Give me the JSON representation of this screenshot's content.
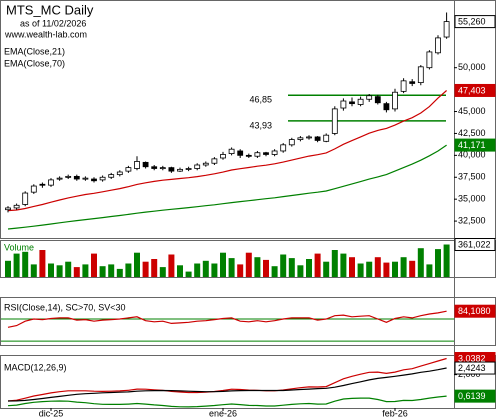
{
  "chart_data": [
    {
      "type": "candlestick",
      "title": "MTS_MC Daily",
      "subtitle": "as of 11/02/2026",
      "source": "www.wealth-lab.com",
      "categories": [
        null,
        null,
        null,
        null,
        null,
        "dic-25",
        null,
        null,
        null,
        null,
        null,
        null,
        null,
        null,
        null,
        null,
        null,
        null,
        null,
        null,
        null,
        null,
        null,
        null,
        null,
        "ene-26",
        null,
        null,
        null,
        null,
        null,
        null,
        null,
        null,
        null,
        null,
        null,
        null,
        null,
        null,
        null,
        null,
        null,
        null,
        null,
        "feb-26",
        null,
        null,
        null,
        null,
        null,
        null
      ],
      "open": [
        33800,
        34000,
        34400,
        35800,
        36700,
        36600,
        37300,
        37500,
        37600,
        37300,
        37300,
        37200,
        37500,
        37800,
        38200,
        38500,
        39200,
        38700,
        38500,
        38600,
        38200,
        38400,
        38500,
        38900,
        39100,
        39700,
        40200,
        40500,
        40000,
        39900,
        40300,
        40100,
        40500,
        41200,
        41800,
        42000,
        42100,
        41600,
        42500,
        45400,
        46100,
        45800,
        46400,
        46700,
        45900,
        45300,
        47300,
        48400,
        48300,
        50000,
        51700,
        53500
      ],
      "high": [
        34200,
        34500,
        35900,
        36700,
        36900,
        37400,
        37600,
        37800,
        37800,
        37600,
        37500,
        37700,
        38000,
        38300,
        38800,
        39900,
        39300,
        38900,
        38800,
        38700,
        38600,
        38700,
        39100,
        39300,
        39800,
        40400,
        40900,
        40700,
        40200,
        40500,
        40400,
        40700,
        41400,
        42000,
        42200,
        42300,
        42200,
        42500,
        45600,
        46500,
        46600,
        46700,
        47000,
        46900,
        46100,
        47600,
        48800,
        48700,
        50300,
        52000,
        53700,
        56300
      ],
      "low": [
        33500,
        33800,
        34200,
        35600,
        36300,
        36400,
        37100,
        37300,
        37100,
        37100,
        36900,
        37000,
        37300,
        37600,
        38000,
        38300,
        38500,
        38300,
        38300,
        38000,
        38100,
        38200,
        38300,
        38700,
        38900,
        39500,
        40000,
        39700,
        39700,
        39700,
        39900,
        39900,
        40300,
        41000,
        41600,
        41800,
        41500,
        41500,
        42300,
        45100,
        45600,
        45600,
        46100,
        45800,
        44900,
        45000,
        47100,
        47900,
        48000,
        49800,
        51500,
        53300
      ],
      "close": [
        34000,
        34300,
        35700,
        36500,
        36600,
        37200,
        37400,
        37600,
        37300,
        37400,
        37100,
        37500,
        37800,
        38100,
        38600,
        39300,
        38700,
        38500,
        38600,
        38200,
        38400,
        38500,
        38900,
        39100,
        39600,
        40100,
        40700,
        40000,
        39900,
        40300,
        40100,
        40500,
        41200,
        41800,
        42000,
        42100,
        41700,
        42300,
        45300,
        46200,
        45900,
        46400,
        46800,
        46000,
        45200,
        47200,
        48500,
        48200,
        50100,
        51800,
        53400,
        55260
      ],
      "last_label": "55,260",
      "up_color": "#ffffff",
      "down_color": "#000000",
      "series": [
        {
          "name": "EMA(Close,21)",
          "color": "#cc0000",
          "last_label": "47,403",
          "values": [
            33700,
            33760,
            33940,
            34170,
            34390,
            34650,
            34900,
            35150,
            35340,
            35530,
            35670,
            35840,
            36020,
            36210,
            36420,
            36680,
            36870,
            37030,
            37170,
            37260,
            37360,
            37450,
            37580,
            37720,
            37890,
            38090,
            38330,
            38480,
            38610,
            38760,
            38880,
            39030,
            39230,
            39460,
            39690,
            39910,
            40070,
            40280,
            40740,
            41260,
            41680,
            42100,
            42530,
            42850,
            43070,
            43450,
            43910,
            44300,
            44830,
            45560,
            46530,
            47403
          ]
        },
        {
          "name": "EMA(Close,70)",
          "color": "#008000",
          "last_label": "41,171",
          "values": [
            31600,
            31700,
            31800,
            31920,
            32040,
            32170,
            32300,
            32430,
            32550,
            32670,
            32780,
            32900,
            33020,
            33140,
            33260,
            33400,
            33520,
            33630,
            33740,
            33840,
            33940,
            34040,
            34140,
            34250,
            34360,
            34480,
            34610,
            34720,
            34830,
            34940,
            35050,
            35160,
            35290,
            35420,
            35550,
            35680,
            35800,
            35930,
            36190,
            36470,
            36740,
            37010,
            37290,
            37540,
            37800,
            38200,
            38600,
            39000,
            39450,
            39950,
            40500,
            41171
          ]
        }
      ],
      "levels": [
        {
          "value": 46850,
          "label": "46,85"
        },
        {
          "value": 43930,
          "label": "43,93"
        }
      ],
      "level_color": "#008000",
      "ylim": [
        30570,
        57610
      ],
      "yticks": [
        {
          "value": 32500,
          "label": "32,500"
        },
        {
          "value": 35000,
          "label": "35,000"
        },
        {
          "value": 37500,
          "label": "37,500"
        },
        {
          "value": 40000,
          "label": "40,000"
        },
        {
          "value": 42500,
          "label": "42,500"
        },
        {
          "value": 45000,
          "label": "45,000"
        },
        {
          "value": 50000,
          "label": "50,000"
        }
      ]
    },
    {
      "type": "bar",
      "title": "Volume",
      "up_color": "#008000",
      "down_color": "#cc0000",
      "last_label": "361,022",
      "values": [
        180000,
        260000,
        280000,
        140000,
        300000,
        150000,
        130000,
        170000,
        110000,
        140000,
        260000,
        120000,
        140000,
        90000,
        150000,
        270000,
        170000,
        200000,
        110000,
        250000,
        130000,
        60000,
        150000,
        180000,
        150000,
        270000,
        210000,
        140000,
        270000,
        220000,
        190000,
        120000,
        250000,
        210000,
        130000,
        200000,
        260000,
        170000,
        300000,
        260000,
        220000,
        150000,
        170000,
        220000,
        160000,
        170000,
        220000,
        180000,
        320000,
        140000,
        310000,
        361022
      ],
      "ylim": [
        0,
        400000
      ]
    },
    {
      "type": "line",
      "title": "RSI(Close,14), SC>70, SV<30",
      "levels": [
        70,
        30
      ],
      "level_color": "#008000",
      "series": [
        {
          "color": "#cc0000",
          "last_label": "84,1080",
          "values": [
            55,
            58,
            66,
            70,
            69,
            71,
            72,
            72,
            68,
            69,
            66,
            68,
            69,
            70,
            72,
            74,
            67,
            65,
            66,
            62,
            63,
            64,
            66,
            67,
            69,
            71,
            72,
            66,
            65,
            67,
            65,
            67,
            70,
            72,
            72,
            72,
            68,
            70,
            76,
            77,
            74,
            75,
            76,
            70,
            64,
            71,
            74,
            72,
            76,
            79,
            81,
            84.108
          ]
        }
      ],
      "ylim": [
        23,
        108
      ]
    },
    {
      "type": "line",
      "title": "MACD(12,26,9)",
      "series": [
        {
          "color": "#cc0000",
          "last_label": "3,0382",
          "values": [
            0.3,
            0.35,
            0.48,
            0.62,
            0.72,
            0.82,
            0.9,
            0.96,
            0.96,
            0.96,
            0.93,
            0.92,
            0.93,
            0.95,
            0.99,
            1.07,
            1.06,
            1.02,
            0.99,
            0.92,
            0.88,
            0.85,
            0.85,
            0.87,
            0.91,
            0.98,
            1.06,
            1.04,
            1.0,
            0.99,
            0.96,
            0.96,
            1.01,
            1.09,
            1.16,
            1.21,
            1.2,
            1.23,
            1.48,
            1.73,
            1.89,
            2.03,
            2.15,
            2.16,
            2.08,
            2.16,
            2.31,
            2.38,
            2.55,
            2.71,
            2.88,
            3.0382
          ]
        },
        {
          "color": "#000000",
          "last_label": "2,4243",
          "values": [
            0.3,
            0.31,
            0.34,
            0.4,
            0.46,
            0.53,
            0.6,
            0.67,
            0.73,
            0.77,
            0.8,
            0.83,
            0.85,
            0.87,
            0.89,
            0.93,
            0.96,
            0.97,
            0.98,
            0.97,
            0.95,
            0.93,
            0.91,
            0.9,
            0.9,
            0.92,
            0.95,
            0.97,
            0.98,
            0.98,
            0.98,
            0.98,
            0.98,
            1.01,
            1.04,
            1.07,
            1.1,
            1.12,
            1.19,
            1.3,
            1.42,
            1.54,
            1.66,
            1.76,
            1.82,
            1.89,
            1.97,
            2.05,
            2.15,
            2.22,
            2.32,
            2.4243
          ]
        },
        {
          "color": "#008000",
          "last_label": "0,6139",
          "values": [
            0,
            0.04,
            0.14,
            0.22,
            0.26,
            0.29,
            0.3,
            0.29,
            0.23,
            0.19,
            0.13,
            0.09,
            0.08,
            0.08,
            0.1,
            0.14,
            0.1,
            0.05,
            0.01,
            -0.05,
            -0.07,
            -0.08,
            -0.06,
            -0.03,
            0.01,
            0.06,
            0.11,
            0.07,
            0.02,
            0.01,
            -0.02,
            -0.02,
            0.03,
            0.08,
            0.12,
            0.14,
            0.1,
            0.11,
            0.29,
            0.43,
            0.47,
            0.49,
            0.49,
            0.4,
            0.26,
            0.27,
            0.34,
            0.33,
            0.4,
            0.49,
            0.56,
            0.6139
          ]
        }
      ],
      "ylim": [
        -0.15,
        3.2
      ],
      "yticks": [
        {
          "value": 2,
          "label": "2,000"
        }
      ]
    }
  ]
}
